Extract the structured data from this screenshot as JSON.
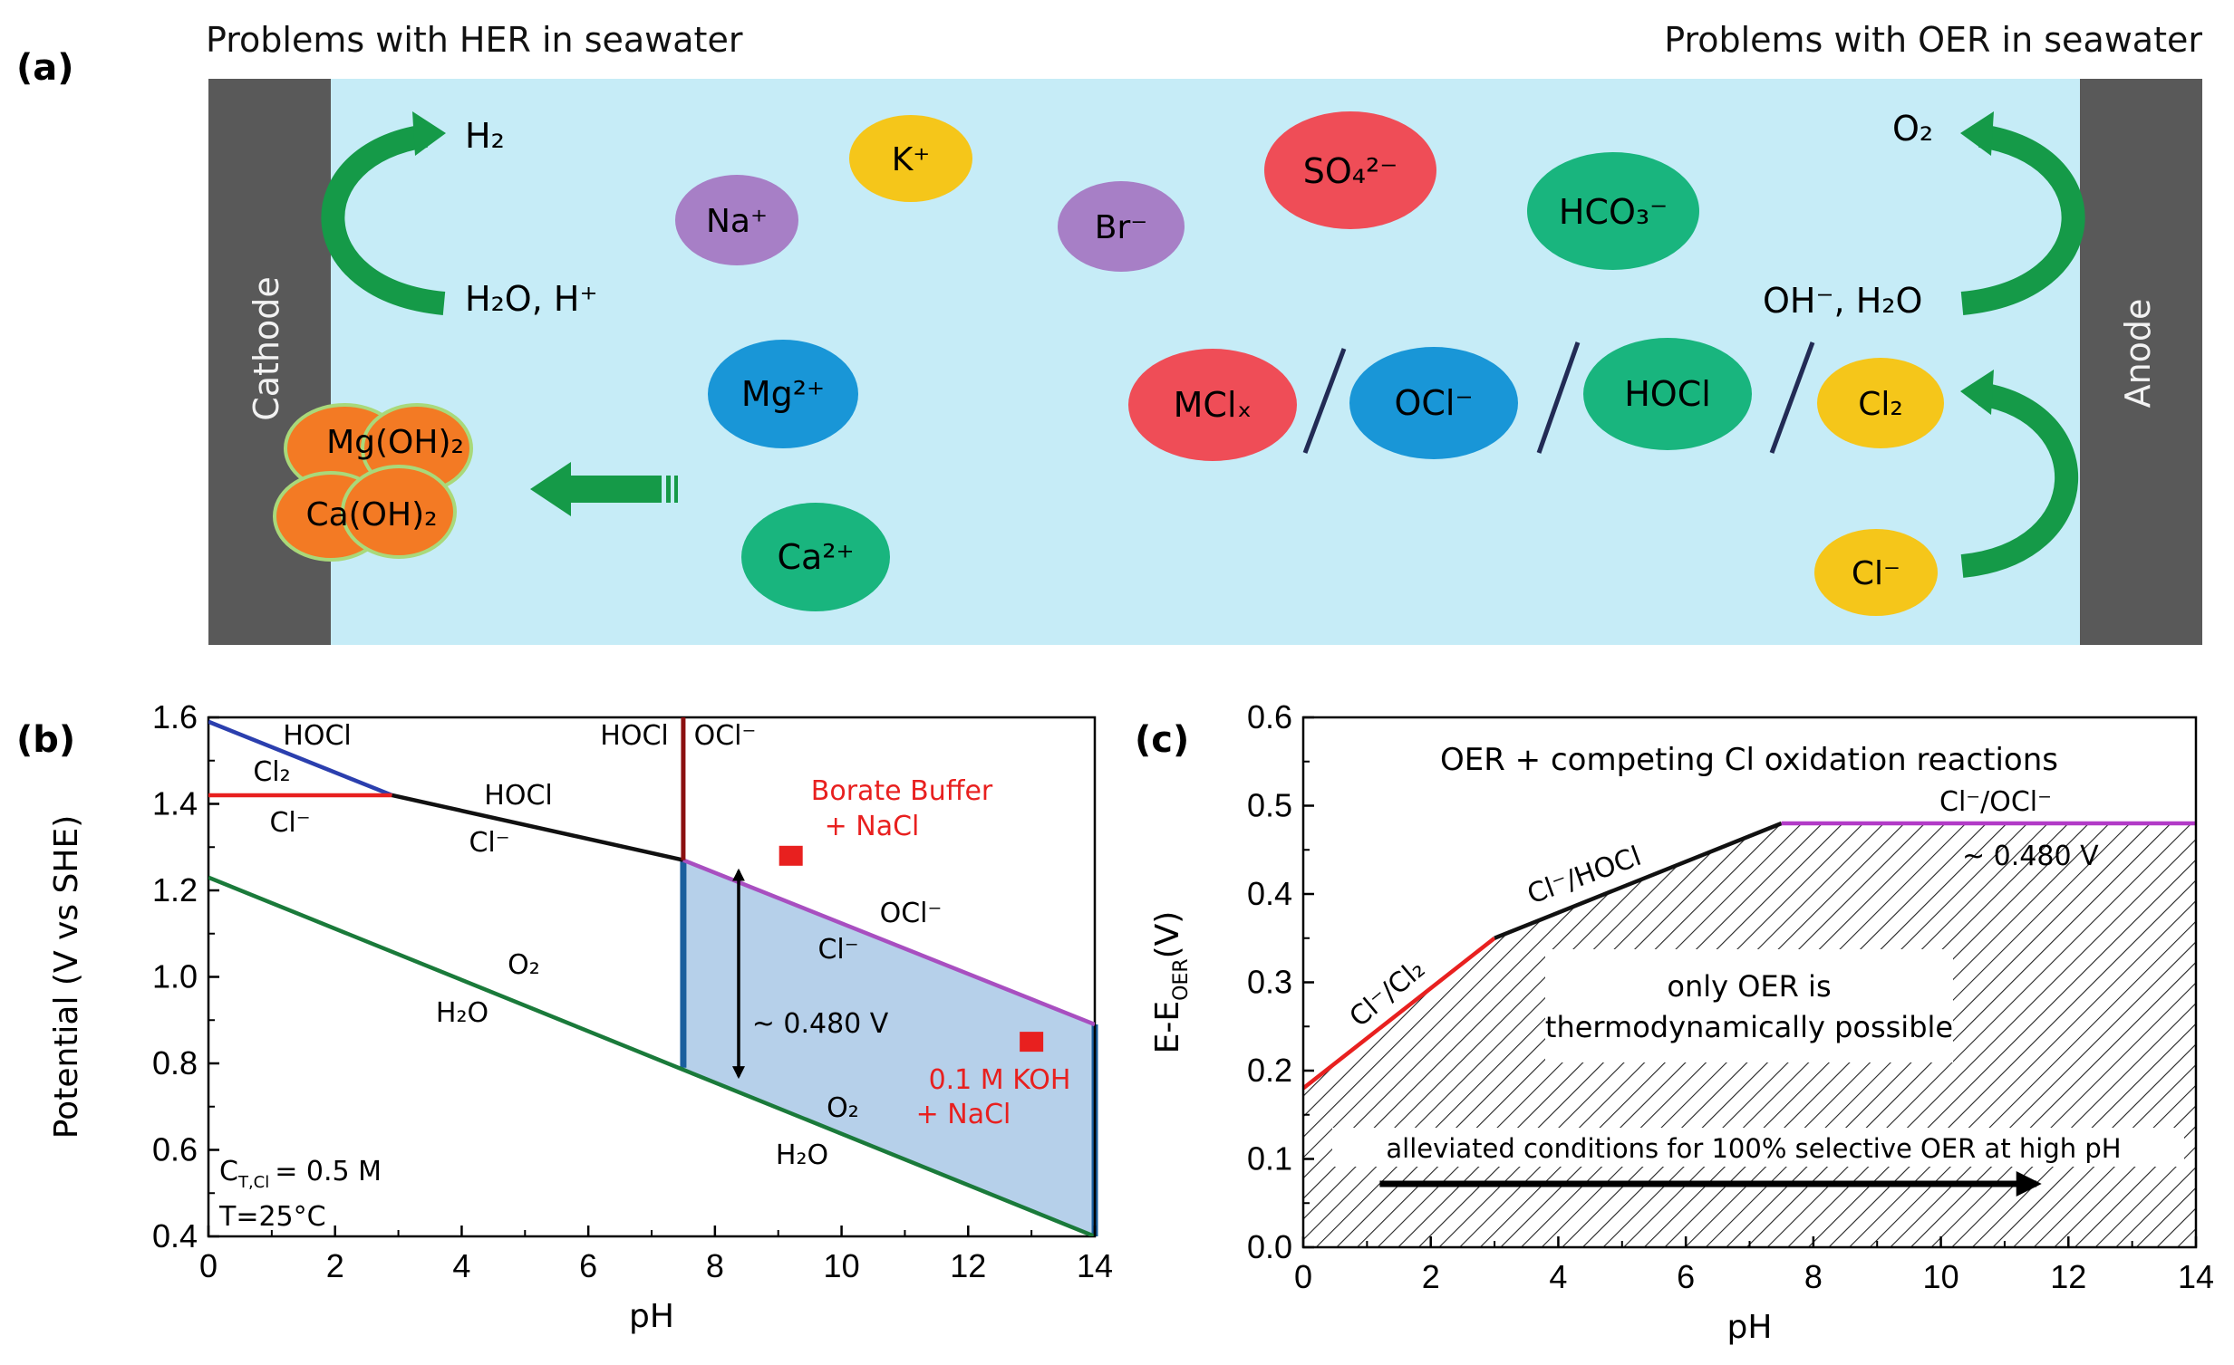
{
  "panel_a": {
    "label": "(a)",
    "her_title": "Problems with HER in seawater",
    "oer_title": "Problems with OER in seawater",
    "cathode": "Cathode",
    "anode": "Anode",
    "her_product": "H₂",
    "her_reactant": "H₂O, H⁺",
    "oer_product": "O₂",
    "oer_reactant": "OH⁻, H₂O",
    "chloride": "Cl⁻",
    "chlorine": "Cl₂",
    "hydroxides": [
      "Mg(OH)₂",
      "Ca(OH)₂"
    ],
    "ions": [
      "K⁺",
      "Na⁺",
      "Br⁻",
      "SO₄²⁻",
      "HCO₃⁻",
      "Mg²⁺",
      "Ca²⁺"
    ],
    "chlorine_species": [
      "MClₓ",
      "OCl⁻",
      "HOCl"
    ],
    "colors": {
      "water": "#c6ecf7",
      "electrode": "#595959",
      "arrow": "#159a48",
      "red": "#ef4d57",
      "purple": "#a77fc6",
      "yellow": "#f5c61a",
      "blue": "#1996d7",
      "green": "#19b57e",
      "orange": "#f37a24"
    }
  },
  "panel_b": {
    "label": "(b)",
    "chart_data": {
      "type": "line",
      "title": "",
      "xlabel": "pH",
      "ylabel": "Potential (V vs SHE)",
      "xlim": [
        0,
        14
      ],
      "ylim": [
        0.4,
        1.6
      ],
      "xticks": [
        "0",
        "2",
        "4",
        "6",
        "8",
        "10",
        "12",
        "14"
      ],
      "yticks": [
        "0.4",
        "0.6",
        "0.8",
        "1.0",
        "1.2",
        "1.4",
        "1.6"
      ],
      "series": [
        {
          "name": "O2/H2O",
          "color": "#1a7a3a",
          "x": [
            0,
            14
          ],
          "y": [
            1.23,
            0.4
          ]
        },
        {
          "name": "HOCl/Cl2",
          "color": "#2b3fae",
          "x": [
            0,
            2.9
          ],
          "y": [
            1.59,
            1.42
          ]
        },
        {
          "name": "Cl2/Cl-",
          "color": "#e8201f",
          "x": [
            0,
            2.9
          ],
          "y": [
            1.42,
            1.42
          ]
        },
        {
          "name": "HOCl/Cl-",
          "color": "#111111",
          "x": [
            2.9,
            7.5
          ],
          "y": [
            1.42,
            1.27
          ]
        },
        {
          "name": "OCl-/Cl-",
          "color": "#a84fc0",
          "x": [
            7.5,
            14
          ],
          "y": [
            1.27,
            0.89
          ]
        },
        {
          "name": "HOCl/OCl- boundary",
          "color": "#8b1010",
          "x": [
            7.5,
            7.5
          ],
          "y": [
            1.27,
            1.61
          ]
        }
      ],
      "region": {
        "name": "selective OER window",
        "x": [
          7.5,
          14
        ],
        "upper": [
          1.27,
          0.89
        ],
        "lower": [
          0.79,
          0.4
        ],
        "color": "#a9c8e6"
      },
      "markers": [
        {
          "x": 9.2,
          "y": 1.28,
          "label": "Borate Buffer + NaCl",
          "color": "#e8201f"
        },
        {
          "x": 13.0,
          "y": 0.85,
          "label": "0.1 M KOH + NaCl",
          "color": "#e8201f"
        }
      ],
      "species_labels": [
        "HOCl",
        "Cl₂",
        "Cl⁻",
        "HOCl",
        "Cl⁻",
        "HOCl",
        "OCl⁻",
        "OCl⁻",
        "Cl⁻",
        "O₂",
        "H₂O",
        "O₂",
        "H₂O"
      ],
      "annotations": {
        "gap": "~ 0.480 V",
        "marker1_line1": "Borate Buffer",
        "marker1_line2": "+ NaCl",
        "marker2_line1": "0.1 M KOH",
        "marker2_line2": "+ NaCl",
        "conc": "C",
        "conc_sub": "T,Cl",
        "conc_value": "= 0.5 M",
        "temp": "T=25°C"
      }
    }
  },
  "panel_c": {
    "label": "(c)",
    "chart_data": {
      "type": "line",
      "title": "OER + competing Cl oxidation reactions",
      "xlabel": "pH",
      "ylabel_main": "E-E",
      "ylabel_sub": "OER",
      "ylabel_unit": "(V)",
      "xlim": [
        0,
        14
      ],
      "ylim": [
        0.0,
        0.6
      ],
      "xticks": [
        "0",
        "2",
        "4",
        "6",
        "8",
        "10",
        "12",
        "14"
      ],
      "yticks": [
        "0.0",
        "0.1",
        "0.2",
        "0.3",
        "0.4",
        "0.5",
        "0.6"
      ],
      "series": [
        {
          "name": "Cl-/Cl2",
          "color": "#e8201f",
          "x": [
            0,
            3
          ],
          "y": [
            0.18,
            0.35
          ]
        },
        {
          "name": "Cl-/HOCl",
          "color": "#111111",
          "x": [
            3,
            7.5
          ],
          "y": [
            0.35,
            0.48
          ]
        },
        {
          "name": "Cl-/OCl-",
          "color": "#b23bc7",
          "x": [
            7.5,
            14
          ],
          "y": [
            0.48,
            0.48
          ]
        }
      ],
      "line_labels": [
        "Cl⁻/Cl₂",
        "Cl⁻/HOCl",
        "Cl⁻/OCl⁻"
      ],
      "value_label": "~ 0.480 V",
      "box_line1": "only OER is",
      "box_line2": "thermodynamically possible",
      "arrow_label": "alleviated conditions for 100% selective OER at high pH",
      "arrow_x": [
        1.2,
        11.5
      ]
    }
  }
}
